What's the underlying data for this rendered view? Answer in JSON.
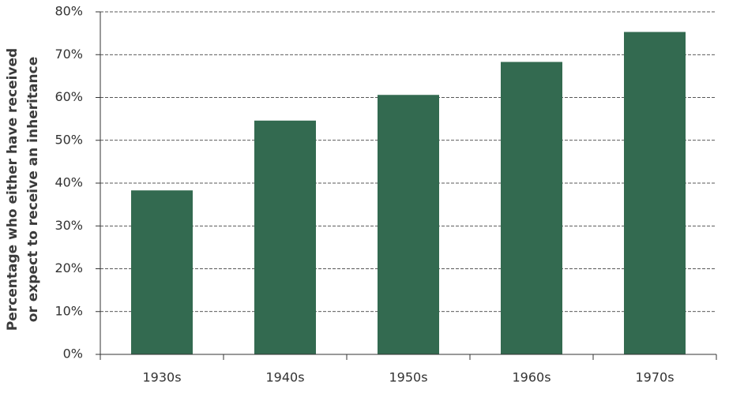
{
  "chart_data": {
    "type": "bar",
    "ylabel": [
      "Percentage who either have received",
      "or expect to receive an inheritance"
    ],
    "categories": [
      "1930s",
      "1940s",
      "1950s",
      "1960s",
      "1970s"
    ],
    "values": [
      38.3,
      54.6,
      60.6,
      68.3,
      75.3
    ],
    "color": "#336a50",
    "ylim": [
      0,
      80
    ],
    "yticks": [
      {
        "value": 0,
        "label": "0%"
      },
      {
        "value": 10,
        "label": "10%"
      },
      {
        "value": 20,
        "label": "20%"
      },
      {
        "value": 30,
        "label": "30%"
      },
      {
        "value": 40,
        "label": "40%"
      },
      {
        "value": 50,
        "label": "50%"
      },
      {
        "value": 60,
        "label": "60%"
      },
      {
        "value": 70,
        "label": "70%"
      },
      {
        "value": 80,
        "label": "80%"
      }
    ],
    "grid": true
  }
}
